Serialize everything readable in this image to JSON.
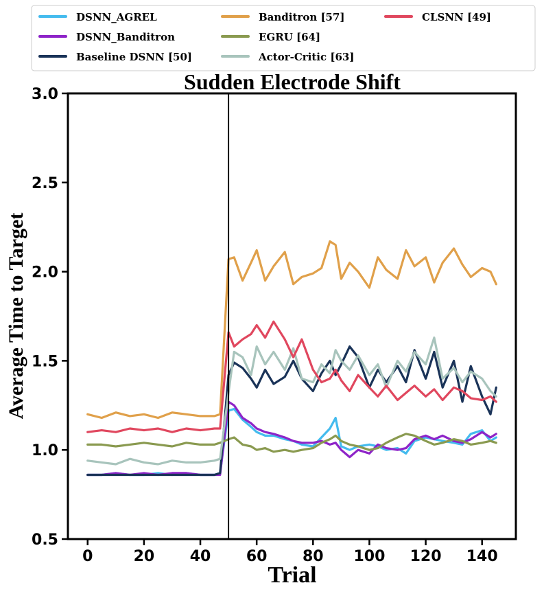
{
  "chart_data": {
    "type": "line",
    "title": "Sudden Electrode Shift",
    "xlabel": "Trial",
    "ylabel": "Average Time to Target",
    "xlim": [
      -7,
      152
    ],
    "ylim": [
      0.5,
      3.0
    ],
    "xticks": [
      0,
      20,
      40,
      60,
      80,
      100,
      120,
      140
    ],
    "yticks": [
      0.5,
      1.0,
      1.5,
      2.0,
      2.5,
      3.0
    ],
    "ytick_labels": [
      "0.5",
      "1.0",
      "1.5",
      "2.0",
      "2.5",
      "3.0"
    ],
    "shift_marker_x": 50,
    "grid": false,
    "legend_position": "top",
    "series": [
      {
        "name": "DSNN_AGREL",
        "color": "#44bbee",
        "x": [
          0,
          5,
          10,
          15,
          20,
          25,
          30,
          35,
          40,
          45,
          47,
          50,
          52,
          55,
          58,
          60,
          63,
          66,
          70,
          73,
          76,
          80,
          83,
          86,
          88,
          90,
          93,
          96,
          100,
          103,
          106,
          110,
          113,
          116,
          120,
          123,
          126,
          130,
          133,
          136,
          140,
          143,
          145
        ],
        "values": [
          0.86,
          0.86,
          0.87,
          0.86,
          0.86,
          0.87,
          0.86,
          0.87,
          0.86,
          0.86,
          0.87,
          1.22,
          1.23,
          1.17,
          1.13,
          1.1,
          1.08,
          1.08,
          1.06,
          1.05,
          1.03,
          1.02,
          1.07,
          1.12,
          1.18,
          1.02,
          1.0,
          1.02,
          1.03,
          1.02,
          1.0,
          1.01,
          0.98,
          1.05,
          1.07,
          1.06,
          1.05,
          1.04,
          1.03,
          1.09,
          1.11,
          1.05,
          1.07
        ]
      },
      {
        "name": "DSNN_Banditron",
        "color": "#8e24c8",
        "x": [
          0,
          5,
          10,
          15,
          20,
          25,
          30,
          35,
          40,
          45,
          47,
          50,
          52,
          55,
          58,
          60,
          63,
          66,
          70,
          73,
          76,
          80,
          83,
          86,
          88,
          90,
          93,
          96,
          100,
          103,
          106,
          110,
          113,
          116,
          120,
          123,
          126,
          130,
          133,
          136,
          140,
          143,
          145
        ],
        "values": [
          0.86,
          0.86,
          0.87,
          0.86,
          0.87,
          0.86,
          0.87,
          0.87,
          0.86,
          0.86,
          0.86,
          1.27,
          1.25,
          1.18,
          1.15,
          1.12,
          1.1,
          1.09,
          1.07,
          1.05,
          1.04,
          1.04,
          1.05,
          1.03,
          1.04,
          1.0,
          0.96,
          1.0,
          0.98,
          1.03,
          1.01,
          1.0,
          1.01,
          1.06,
          1.08,
          1.06,
          1.08,
          1.05,
          1.04,
          1.06,
          1.1,
          1.07,
          1.09
        ]
      },
      {
        "name": "Baseline DSNN [50]",
        "color": "#1a3358",
        "x": [
          0,
          5,
          10,
          15,
          20,
          25,
          30,
          35,
          40,
          45,
          47,
          50,
          52,
          55,
          58,
          60,
          63,
          66,
          70,
          73,
          76,
          80,
          83,
          86,
          88,
          90,
          93,
          96,
          100,
          103,
          106,
          110,
          113,
          116,
          120,
          123,
          126,
          130,
          133,
          136,
          140,
          143,
          145
        ],
        "values": [
          0.86,
          0.86,
          0.86,
          0.86,
          0.86,
          0.86,
          0.86,
          0.86,
          0.86,
          0.86,
          0.87,
          1.42,
          1.49,
          1.46,
          1.4,
          1.35,
          1.45,
          1.37,
          1.41,
          1.5,
          1.4,
          1.33,
          1.43,
          1.5,
          1.42,
          1.48,
          1.58,
          1.52,
          1.35,
          1.45,
          1.38,
          1.47,
          1.38,
          1.56,
          1.4,
          1.55,
          1.35,
          1.5,
          1.27,
          1.47,
          1.3,
          1.2,
          1.35
        ]
      },
      {
        "name": "Banditron [57]",
        "color": "#e0a04a",
        "x": [
          0,
          5,
          10,
          15,
          20,
          25,
          30,
          35,
          40,
          45,
          47,
          50,
          52,
          55,
          58,
          60,
          63,
          66,
          70,
          73,
          76,
          80,
          83,
          86,
          88,
          90,
          93,
          96,
          100,
          103,
          106,
          110,
          113,
          116,
          120,
          123,
          126,
          130,
          133,
          136,
          140,
          143,
          145
        ],
        "values": [
          1.2,
          1.18,
          1.21,
          1.19,
          1.2,
          1.18,
          1.21,
          1.2,
          1.19,
          1.19,
          1.2,
          2.07,
          2.08,
          1.95,
          2.05,
          2.12,
          1.95,
          2.03,
          2.11,
          1.93,
          1.97,
          1.99,
          2.02,
          2.17,
          2.15,
          1.96,
          2.05,
          2.0,
          1.91,
          2.08,
          2.01,
          1.96,
          2.12,
          2.03,
          2.08,
          1.94,
          2.05,
          2.13,
          2.04,
          1.97,
          2.02,
          2.0,
          1.93
        ]
      },
      {
        "name": "EGRU [64]",
        "color": "#8a9a50",
        "x": [
          0,
          5,
          10,
          15,
          20,
          25,
          30,
          35,
          40,
          45,
          47,
          50,
          52,
          55,
          58,
          60,
          63,
          66,
          70,
          73,
          76,
          80,
          83,
          86,
          88,
          90,
          93,
          96,
          100,
          103,
          106,
          110,
          113,
          116,
          120,
          123,
          126,
          130,
          133,
          136,
          140,
          143,
          145
        ],
        "values": [
          1.03,
          1.03,
          1.02,
          1.03,
          1.04,
          1.03,
          1.02,
          1.04,
          1.03,
          1.03,
          1.04,
          1.06,
          1.07,
          1.03,
          1.02,
          1.0,
          1.01,
          0.99,
          1.0,
          0.99,
          1.0,
          1.01,
          1.04,
          1.06,
          1.08,
          1.05,
          1.03,
          1.02,
          1.0,
          1.01,
          1.04,
          1.07,
          1.09,
          1.08,
          1.05,
          1.03,
          1.04,
          1.06,
          1.05,
          1.03,
          1.04,
          1.05,
          1.04
        ]
      },
      {
        "name": "Actor-Critic [63]",
        "color": "#a8c4bc",
        "x": [
          0,
          5,
          10,
          15,
          20,
          25,
          30,
          35,
          40,
          45,
          47,
          50,
          52,
          55,
          58,
          60,
          63,
          66,
          70,
          73,
          76,
          80,
          83,
          86,
          88,
          90,
          93,
          96,
          100,
          103,
          106,
          110,
          113,
          116,
          120,
          123,
          126,
          130,
          133,
          136,
          140,
          143,
          145
        ],
        "values": [
          0.94,
          0.93,
          0.92,
          0.95,
          0.93,
          0.92,
          0.94,
          0.93,
          0.93,
          0.94,
          0.95,
          1.32,
          1.55,
          1.52,
          1.42,
          1.58,
          1.48,
          1.55,
          1.45,
          1.57,
          1.4,
          1.38,
          1.48,
          1.43,
          1.56,
          1.5,
          1.45,
          1.53,
          1.42,
          1.48,
          1.35,
          1.5,
          1.44,
          1.55,
          1.48,
          1.63,
          1.4,
          1.46,
          1.38,
          1.44,
          1.4,
          1.33,
          1.3
        ]
      },
      {
        "name": "CLSNN [49]",
        "color": "#e0475e",
        "x": [
          0,
          5,
          10,
          15,
          20,
          25,
          30,
          35,
          40,
          45,
          47,
          50,
          52,
          55,
          58,
          60,
          63,
          66,
          70,
          73,
          76,
          80,
          83,
          86,
          88,
          90,
          93,
          96,
          100,
          103,
          106,
          110,
          113,
          116,
          120,
          123,
          126,
          130,
          133,
          136,
          140,
          143,
          145
        ],
        "values": [
          1.1,
          1.11,
          1.1,
          1.12,
          1.11,
          1.12,
          1.1,
          1.12,
          1.11,
          1.12,
          1.12,
          1.66,
          1.58,
          1.62,
          1.65,
          1.7,
          1.63,
          1.72,
          1.62,
          1.52,
          1.62,
          1.45,
          1.38,
          1.4,
          1.45,
          1.39,
          1.33,
          1.42,
          1.35,
          1.3,
          1.36,
          1.28,
          1.32,
          1.36,
          1.3,
          1.34,
          1.28,
          1.35,
          1.33,
          1.29,
          1.28,
          1.3,
          1.27
        ]
      }
    ]
  }
}
